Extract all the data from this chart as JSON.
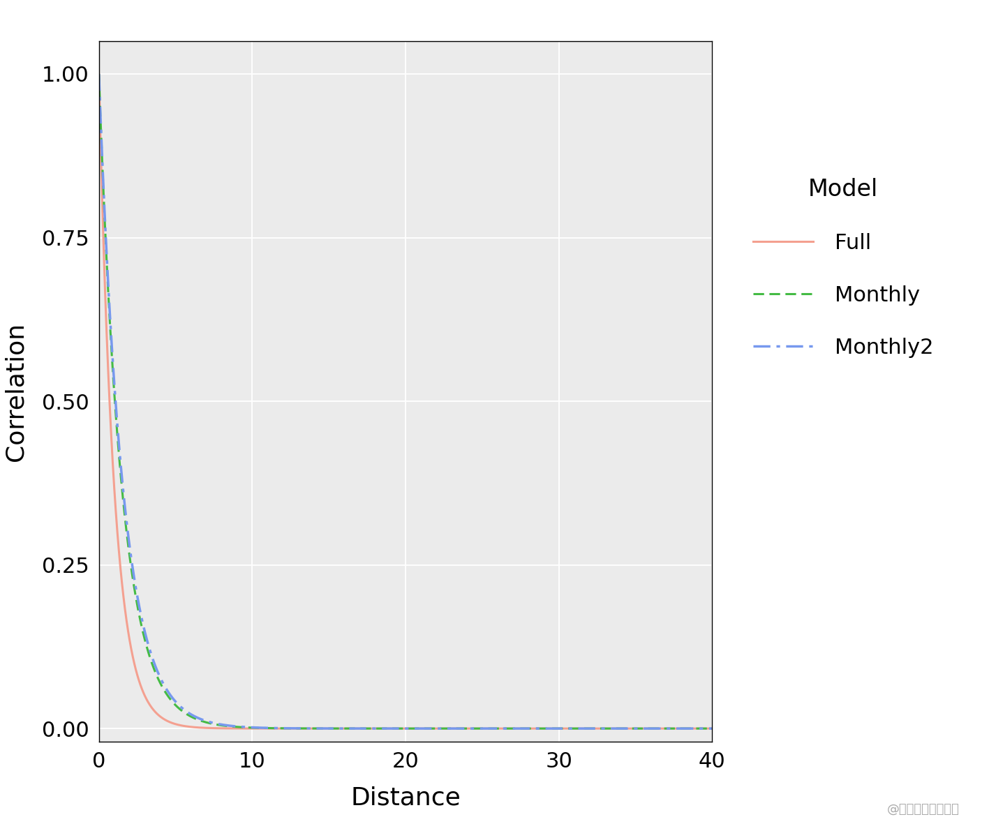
{
  "title": "",
  "xlabel": "Distance",
  "ylabel": "Correlation",
  "xlim": [
    0,
    40
  ],
  "ylim": [
    -0.02,
    1.05
  ],
  "xticks": [
    0,
    10,
    20,
    30,
    40
  ],
  "yticks": [
    0.0,
    0.25,
    0.5,
    0.75,
    1.0
  ],
  "background_color": "#ffffff",
  "plot_bg_color": "#ebebeb",
  "grid_color": "#ffffff",
  "legend_title": "Model",
  "series": [
    {
      "name": "Full",
      "color": "#F4A090",
      "linestyle": "solid",
      "linewidth": 2.2,
      "range": 3.0
    },
    {
      "name": "Monthly",
      "color": "#44BB44",
      "linestyle": "dashed",
      "linewidth": 2.2,
      "range": 4.5
    },
    {
      "name": "Monthly2",
      "color": "#7799EE",
      "linestyle": "dashdot",
      "linewidth": 2.5,
      "range": 4.7
    }
  ],
  "watermark": "@稀土掘金技术社区",
  "watermark_color": "#aaaaaa",
  "watermark_fontsize": 13,
  "tick_labelsize": 22,
  "axis_labelsize": 26,
  "legend_title_fontsize": 24,
  "legend_fontsize": 22
}
